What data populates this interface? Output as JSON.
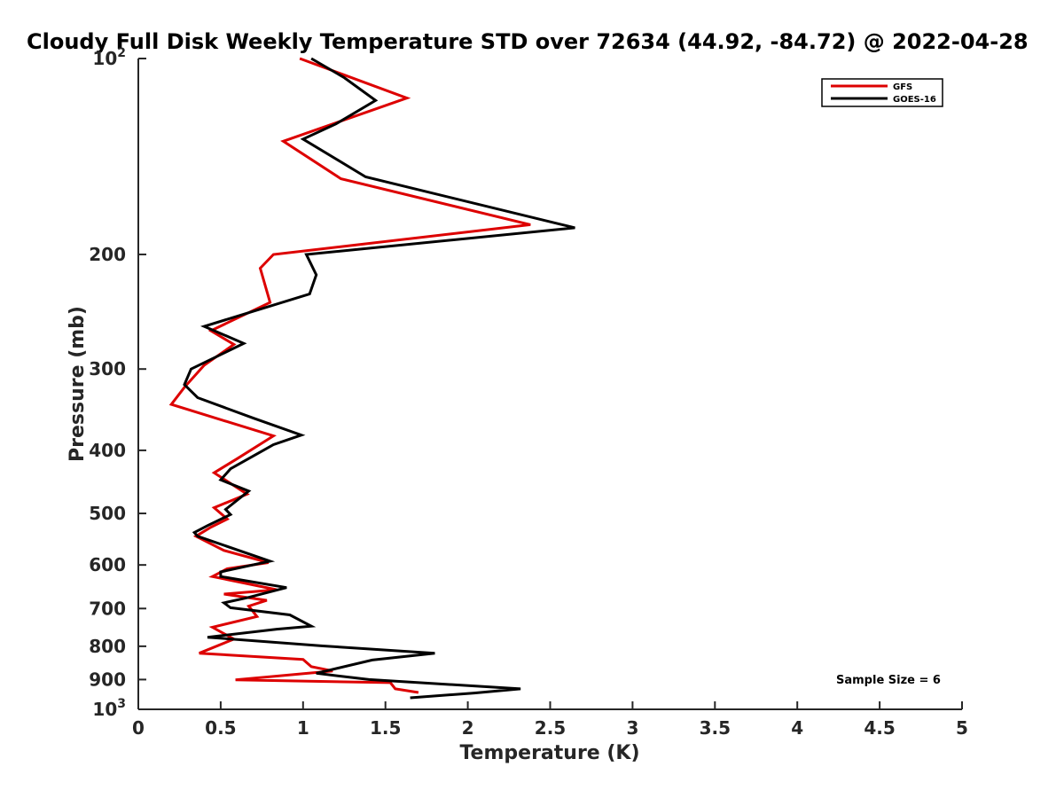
{
  "chart_data": {
    "type": "line",
    "title": "Cloudy Full Disk Weekly Temperature STD over 72634 (44.92, -84.72) @ 2022-04-28",
    "xlabel": "Temperature (K)",
    "ylabel": "Pressure (mb)",
    "xlim": [
      0,
      5
    ],
    "ylim": [
      100,
      1000
    ],
    "y_scale": "log",
    "y_reversed": true,
    "grid": false,
    "legend_position": "top-right",
    "x_ticks": [
      "0",
      "0.5",
      "1",
      "1.5",
      "2",
      "2.5",
      "3",
      "3.5",
      "4",
      "4.5",
      "5"
    ],
    "y_ticks": [
      {
        "value": 100,
        "base": "10",
        "exp": "2"
      },
      {
        "value": 200,
        "label": "200"
      },
      {
        "value": 300,
        "label": "300"
      },
      {
        "value": 400,
        "label": "400"
      },
      {
        "value": 500,
        "label": "500"
      },
      {
        "value": 600,
        "label": "600"
      },
      {
        "value": 700,
        "label": "700"
      },
      {
        "value": 800,
        "label": "800"
      },
      {
        "value": 900,
        "label": "900"
      },
      {
        "value": 1000,
        "base": "10",
        "exp": "3"
      }
    ],
    "annotation": "Sample Size = 6",
    "series": [
      {
        "name": "GFS",
        "color": "#dd0000",
        "points": [
          [
            0.98,
            100
          ],
          [
            1.63,
            115
          ],
          [
            0.88,
            134
          ],
          [
            1.23,
            153
          ],
          [
            2.38,
            180
          ],
          [
            0.82,
            200
          ],
          [
            0.74,
            210
          ],
          [
            0.8,
            237
          ],
          [
            0.44,
            262
          ],
          [
            0.58,
            275
          ],
          [
            0.4,
            296
          ],
          [
            0.28,
            320
          ],
          [
            0.2,
            340
          ],
          [
            0.82,
            380
          ],
          [
            0.6,
            412
          ],
          [
            0.46,
            433
          ],
          [
            0.66,
            467
          ],
          [
            0.46,
            490
          ],
          [
            0.54,
            510
          ],
          [
            0.44,
            525
          ],
          [
            0.35,
            542
          ],
          [
            0.52,
            570
          ],
          [
            0.79,
            595
          ],
          [
            0.54,
            608
          ],
          [
            0.45,
            625
          ],
          [
            0.84,
            655
          ],
          [
            0.52,
            665
          ],
          [
            0.78,
            680
          ],
          [
            0.67,
            694
          ],
          [
            0.72,
            720
          ],
          [
            0.45,
            748
          ],
          [
            0.58,
            780
          ],
          [
            0.37,
            820
          ],
          [
            1.0,
            838
          ],
          [
            1.05,
            860
          ],
          [
            1.18,
            873
          ],
          [
            0.59,
            901
          ],
          [
            1.53,
            910
          ],
          [
            1.56,
            930
          ],
          [
            1.7,
            942
          ]
        ]
      },
      {
        "name": "GOES-16",
        "color": "#000000",
        "points": [
          [
            1.05,
            100
          ],
          [
            1.25,
            107
          ],
          [
            1.44,
            116
          ],
          [
            1.2,
            126
          ],
          [
            1.0,
            133
          ],
          [
            1.38,
            152
          ],
          [
            2.65,
            182
          ],
          [
            1.02,
            200
          ],
          [
            1.08,
            215
          ],
          [
            1.04,
            230
          ],
          [
            0.4,
            258
          ],
          [
            0.64,
            274
          ],
          [
            0.32,
            300
          ],
          [
            0.28,
            317
          ],
          [
            0.36,
            332
          ],
          [
            0.7,
            357
          ],
          [
            0.99,
            379
          ],
          [
            0.82,
            392
          ],
          [
            0.56,
            427
          ],
          [
            0.5,
            444
          ],
          [
            0.67,
            462
          ],
          [
            0.53,
            493
          ],
          [
            0.56,
            502
          ],
          [
            0.42,
            522
          ],
          [
            0.34,
            535
          ],
          [
            0.36,
            542
          ],
          [
            0.8,
            592
          ],
          [
            0.5,
            615
          ],
          [
            0.5,
            625
          ],
          [
            0.9,
            650
          ],
          [
            0.66,
            674
          ],
          [
            0.52,
            686
          ],
          [
            0.56,
            698
          ],
          [
            0.92,
            716
          ],
          [
            1.05,
            745
          ],
          [
            0.84,
            753
          ],
          [
            0.42,
            775
          ],
          [
            1.12,
            799
          ],
          [
            1.8,
            820
          ],
          [
            1.42,
            840
          ],
          [
            1.08,
            880
          ],
          [
            1.4,
            900
          ],
          [
            2.32,
            930
          ],
          [
            2.04,
            944
          ],
          [
            1.65,
            960
          ]
        ]
      }
    ]
  }
}
